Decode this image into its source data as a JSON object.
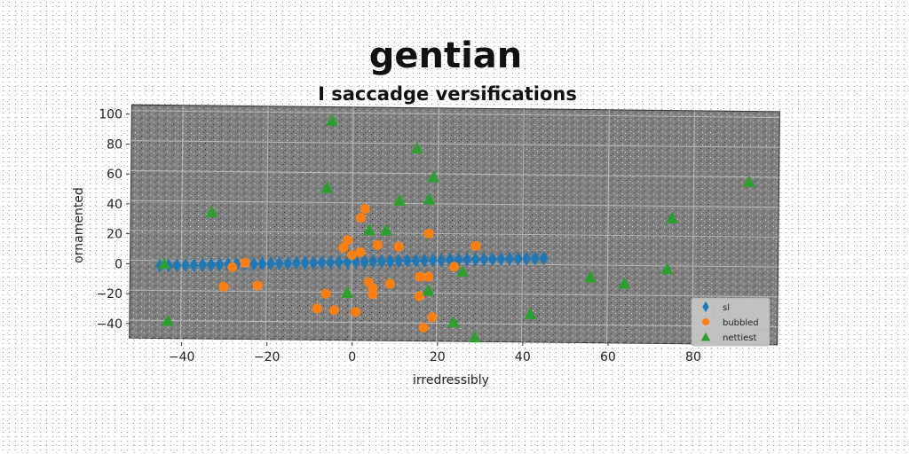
{
  "chart_data": {
    "type": "scatter",
    "title": "gentian",
    "subtitle": "I saccadge versifications",
    "xlabel": "irredressibly",
    "ylabel": "ornamented",
    "xlim": [
      -52,
      100
    ],
    "ylim": [
      -52,
      104
    ],
    "xticks": [
      -40,
      -20,
      0,
      20,
      40,
      60,
      80
    ],
    "yticks": [
      -40,
      -20,
      0,
      20,
      40,
      60,
      80,
      100
    ],
    "grid": true,
    "legend_position": "bottom-right",
    "series": [
      {
        "name": "sl",
        "marker": "diamond",
        "color": "#1f77b4",
        "x": [
          -45,
          -43,
          -41,
          -39,
          -37,
          -35,
          -33,
          -31,
          -29,
          -27,
          -25,
          -23,
          -21,
          -19,
          -17,
          -15,
          -13,
          -11,
          -9,
          -7,
          -5,
          -3,
          -1,
          1,
          3,
          5,
          7,
          9,
          11,
          13,
          15,
          17,
          19,
          21,
          23,
          25,
          27,
          29,
          31,
          33,
          35,
          37,
          39,
          41,
          43,
          45
        ],
        "y": [
          -3.4,
          -3.2,
          -3.1,
          -2.9,
          -2.7,
          -2.6,
          -2.4,
          -2.2,
          -2.1,
          -1.9,
          -1.7,
          -1.6,
          -1.4,
          -1.2,
          -1.0,
          -0.9,
          -0.7,
          -0.5,
          -0.4,
          -0.2,
          0.0,
          0.2,
          0.4,
          0.5,
          0.7,
          0.9,
          1.0,
          1.2,
          1.4,
          1.6,
          1.7,
          1.9,
          2.1,
          2.2,
          2.4,
          2.6,
          2.7,
          2.9,
          3.1,
          3.2,
          3.4,
          3.6,
          3.7,
          3.9,
          4.1,
          4.2
        ]
      },
      {
        "name": "bubbled",
        "marker": "circle",
        "color": "#ff7f0e",
        "x": [
          -30,
          -28,
          -25,
          -22,
          -8,
          -6,
          -4,
          -2,
          -1,
          0,
          1,
          2,
          2,
          3,
          4,
          5,
          5,
          6,
          9,
          11,
          16,
          16,
          17,
          18,
          18,
          19,
          24,
          29
        ],
        "y": [
          -17,
          -4,
          -1,
          -16,
          -31,
          -21,
          -32,
          10,
          15,
          5,
          -33,
          30,
          7,
          36,
          -13,
          -21,
          -17,
          12,
          -14,
          11,
          -9,
          -22,
          -43,
          -9,
          20,
          -36,
          -2,
          12
        ]
      },
      {
        "name": "nettiest",
        "marker": "triangle",
        "color": "#2ca02c",
        "x": [
          -44,
          -43,
          -33,
          -6,
          -5,
          -1,
          4,
          8,
          11,
          15,
          18,
          18,
          19,
          24,
          26,
          29,
          42,
          56,
          64,
          74,
          75,
          93
        ],
        "y": [
          -2,
          -40,
          33,
          50,
          95,
          -20,
          22,
          22,
          42,
          77,
          -18,
          43,
          58,
          -39,
          -5,
          -49,
          -33,
          -8,
          -12,
          -2,
          32,
          57
        ]
      }
    ]
  }
}
